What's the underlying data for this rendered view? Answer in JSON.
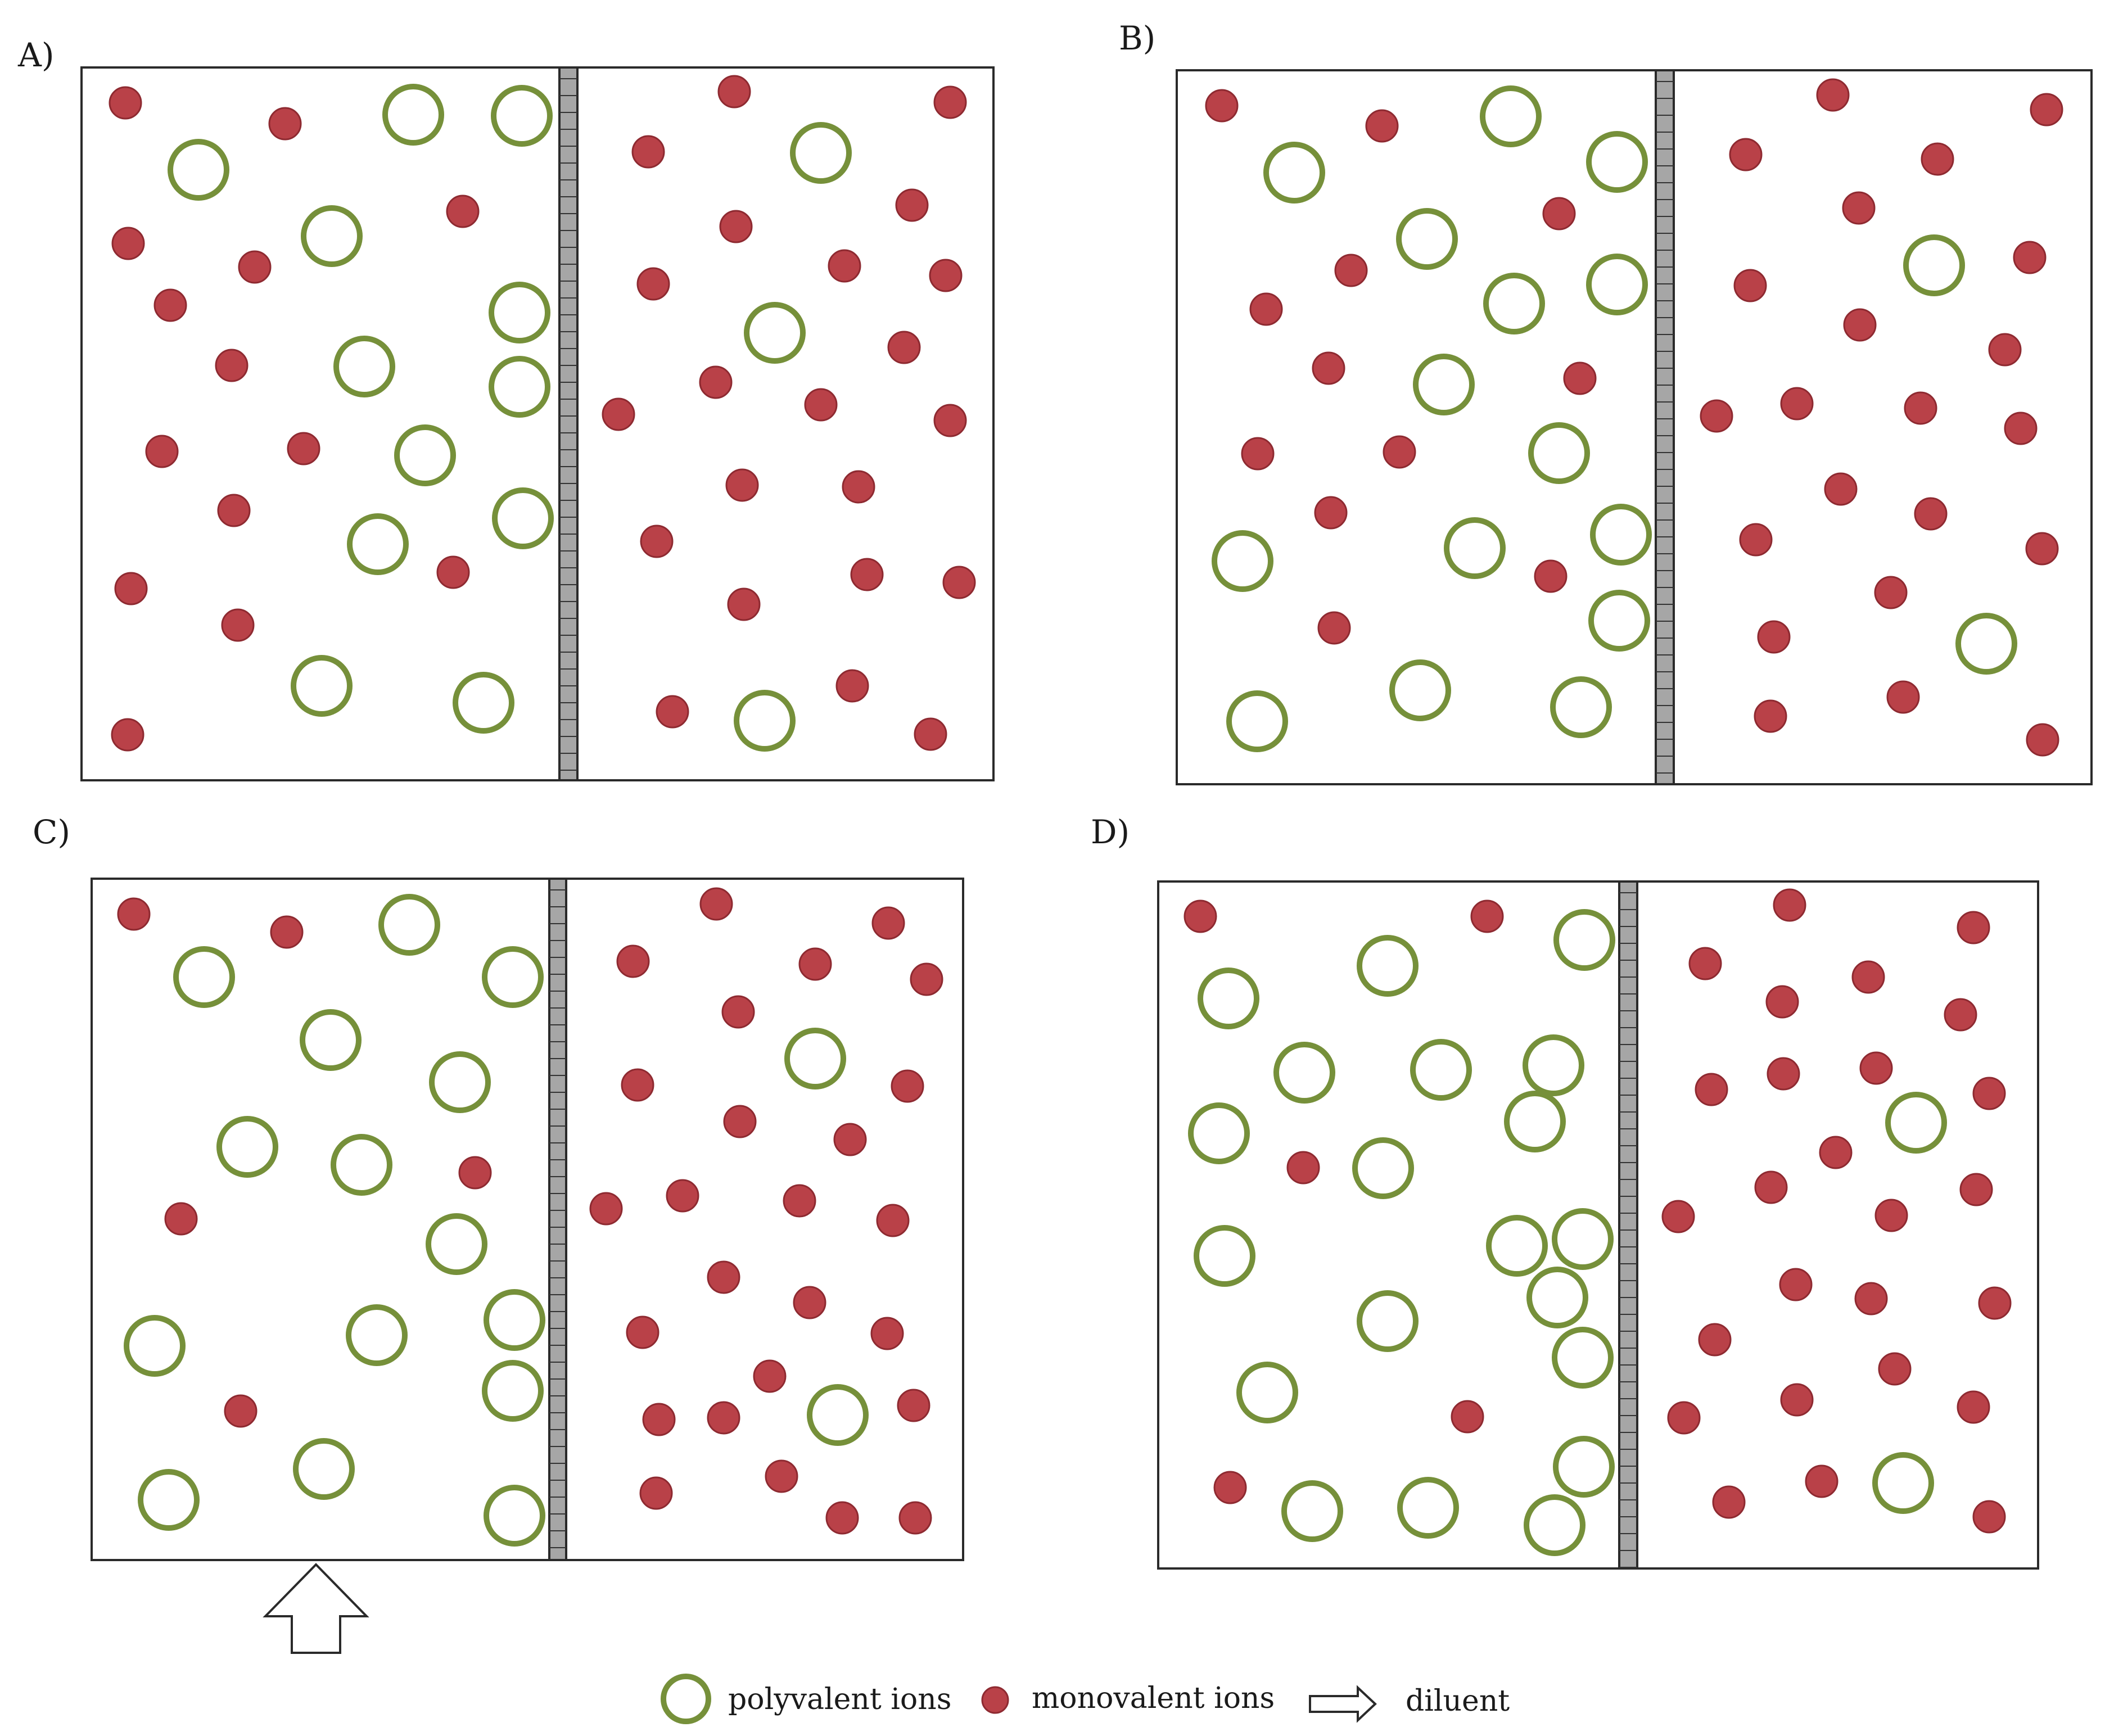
{
  "panels": [
    {
      "label": "A)"
    },
    {
      "label": "B)"
    },
    {
      "label": "C)"
    },
    {
      "label": "D)"
    }
  ],
  "legend": {
    "polyvalent": "polyvalent ions",
    "monovalent": "monovalent ions",
    "diluent": "diluent"
  },
  "colors": {
    "polyvalent_ring": "#76903a",
    "monovalent_fill": "#b94148",
    "monovalent_edge": "#8e2a31",
    "membrane_fill": "#a6a6a6",
    "outline": "#2a2a2a"
  }
}
